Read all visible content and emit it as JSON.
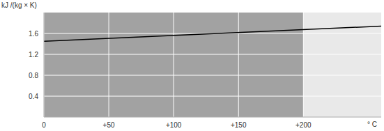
{
  "chart_data": {
    "type": "line",
    "y_label": "kJ /(kg × K)",
    "x_label": "° C",
    "x": [
      0,
      260
    ],
    "values": [
      1.45,
      1.74
    ],
    "color": "#000000",
    "xlim": [
      0,
      260
    ],
    "ylim": [
      0,
      2
    ],
    "xticks": [
      0,
      {
        "value": 50,
        "label": "+50"
      },
      {
        "value": 100,
        "label": "+100"
      },
      {
        "value": 150,
        "label": "+150"
      },
      {
        "value": 200,
        "label": "+200"
      }
    ],
    "yticks": [
      0.4,
      0.8,
      1.2,
      1.6
    ],
    "grid": true
  }
}
